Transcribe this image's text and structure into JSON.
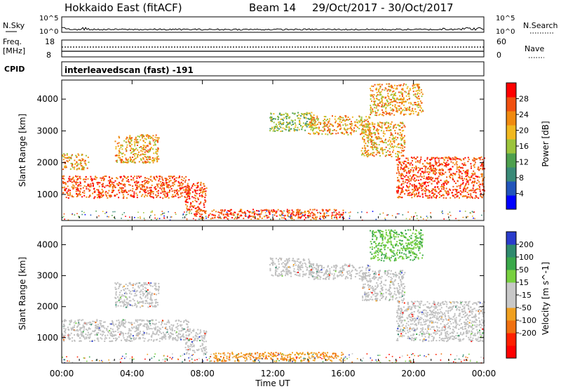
{
  "header": {
    "radar": "Hokkaido East (fitACF)",
    "beam": "Beam 14",
    "dates": "29/Oct/2017 - 30/Oct/2017"
  },
  "status": {
    "nsky_label": "N.Sky",
    "nsky_tick_hi": "10^5",
    "nsky_tick_lo": "10^0",
    "nsearch_label": "N.Search",
    "freq_label": "Freq.",
    "freq_unit": "[MHz]",
    "freq_tick_hi": "18",
    "freq_tick_lo": "8",
    "nave_label": "Nave",
    "nave_tick_hi": "60",
    "nave_tick_lo": "0",
    "cpid_label": "CPID",
    "cpid_value": "interleavedscan (fast) -191"
  },
  "colors": {
    "power": [
      "#0000ff",
      "#2255bb",
      "#3a8a78",
      "#4ea04e",
      "#9cc43c",
      "#f0b820",
      "#f08a10",
      "#f05010",
      "#ff0000"
    ],
    "velocity": [
      "#2a3ccc",
      "#2f8a6e",
      "#3aa84a",
      "#78d040",
      "#c8c8c8",
      "#c8c8c8",
      "#f0a020",
      "#f07010",
      "#ff2000",
      "#ff0000"
    ],
    "groundscatter": "#c0c0c0"
  },
  "chart_data": [
    {
      "type": "heatmap",
      "name": "power",
      "ylabel": "Slant Range [km]",
      "yticks": [
        1000,
        2000,
        3000,
        4000
      ],
      "ylim": [
        180,
        4600
      ],
      "xticks": [
        "00:00",
        "04:00",
        "08:00",
        "12:00",
        "16:00",
        "20:00",
        "00:00"
      ],
      "xlim_hours": [
        0,
        24
      ],
      "colorbar": {
        "label": "Power [dB]",
        "ticks": [
          4,
          8,
          12,
          16,
          20,
          24,
          28
        ],
        "range": [
          0,
          32
        ]
      },
      "echo_regions": [
        {
          "t0": 0.0,
          "t1": 7.2,
          "r0": 900,
          "r1": 1600,
          "level": "high"
        },
        {
          "t0": 0.0,
          "t1": 1.5,
          "r0": 1800,
          "r1": 2300,
          "level": "mid"
        },
        {
          "t0": 3.0,
          "t1": 5.5,
          "r0": 2000,
          "r1": 2900,
          "level": "mid"
        },
        {
          "t0": 7.0,
          "t1": 8.2,
          "r0": 500,
          "r1": 1400,
          "level": "high"
        },
        {
          "t0": 7.5,
          "t1": 16.0,
          "r0": 250,
          "r1": 550,
          "level": "high"
        },
        {
          "t0": 11.8,
          "t1": 14.3,
          "r0": 3000,
          "r1": 3600,
          "level": "low"
        },
        {
          "t0": 14.0,
          "t1": 17.5,
          "r0": 2900,
          "r1": 3500,
          "level": "mid"
        },
        {
          "t0": 17.0,
          "t1": 19.5,
          "r0": 2200,
          "r1": 3300,
          "level": "mid"
        },
        {
          "t0": 19.0,
          "t1": 24.0,
          "r0": 900,
          "r1": 2200,
          "level": "high"
        },
        {
          "t0": 17.5,
          "t1": 20.5,
          "r0": 3500,
          "r1": 4500,
          "level": "mid"
        }
      ]
    },
    {
      "type": "heatmap",
      "name": "velocity",
      "ylabel": "Slant Range [km]",
      "yticks": [
        1000,
        2000,
        3000,
        4000
      ],
      "ylim": [
        180,
        4600
      ],
      "xticks": [
        "00:00",
        "04:00",
        "08:00",
        "12:00",
        "16:00",
        "20:00",
        "00:00"
      ],
      "xlabel": "Time UT",
      "xlim_hours": [
        0,
        24
      ],
      "colorbar": {
        "label": "Velocity [m s^-1]",
        "ticks": [
          "200",
          "100",
          "50",
          "15",
          "-15",
          "-50",
          "-100",
          "-200"
        ],
        "range": [
          -250,
          250
        ]
      },
      "echo_regions": [
        {
          "t0": 0.0,
          "t1": 7.2,
          "r0": 900,
          "r1": 1600,
          "level": "ground"
        },
        {
          "t0": 3.0,
          "t1": 5.5,
          "r0": 2000,
          "r1": 2800,
          "level": "ground"
        },
        {
          "t0": 7.0,
          "t1": 8.2,
          "r0": 500,
          "r1": 1300,
          "level": "ground"
        },
        {
          "t0": 8.5,
          "t1": 16.0,
          "r0": 250,
          "r1": 550,
          "level": "neg"
        },
        {
          "t0": 11.8,
          "t1": 14.3,
          "r0": 3000,
          "r1": 3600,
          "level": "ground"
        },
        {
          "t0": 14.0,
          "t1": 17.5,
          "r0": 2900,
          "r1": 3400,
          "level": "ground"
        },
        {
          "t0": 17.0,
          "t1": 19.5,
          "r0": 2200,
          "r1": 3200,
          "level": "ground"
        },
        {
          "t0": 19.0,
          "t1": 24.0,
          "r0": 900,
          "r1": 2200,
          "level": "ground"
        },
        {
          "t0": 17.5,
          "t1": 20.5,
          "r0": 3500,
          "r1": 4500,
          "level": "pos"
        }
      ]
    }
  ]
}
